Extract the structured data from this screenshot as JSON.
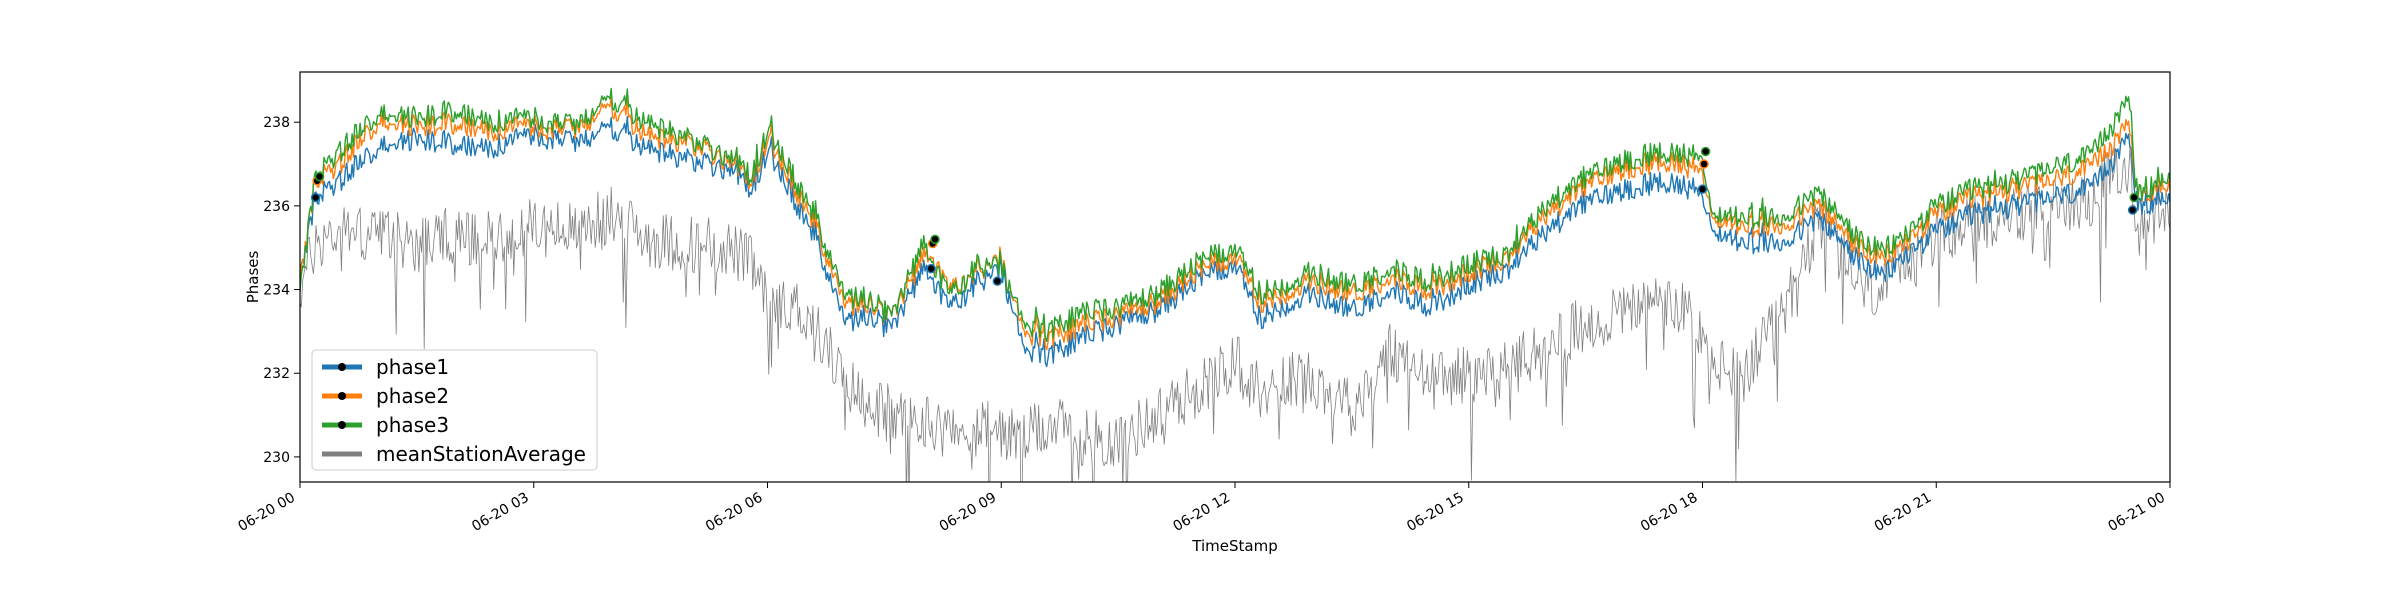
{
  "colors": {
    "phase1": "#1f77b4",
    "phase2": "#ff7f0e",
    "phase3": "#2ca02c",
    "meanStationAverage": "#808080",
    "marker": "#000000"
  },
  "chart_data": {
    "type": "line",
    "title": "",
    "xlabel": "TimeStamp",
    "ylabel": "Phases",
    "xlim": [
      "2024-06-20 00:00",
      "2024-06-21 00:00"
    ],
    "ylim": [
      229.4,
      239.2
    ],
    "grid": false,
    "legend_position": "lower-left",
    "x_ticks": [
      "06-20 00",
      "06-20 03",
      "06-20 06",
      "06-20 09",
      "06-20 12",
      "06-20 15",
      "06-20 18",
      "06-20 21",
      "06-21 00"
    ],
    "y_ticks": [
      "230",
      "232",
      "234",
      "236",
      "238"
    ],
    "x_hours": [
      0,
      0.2,
      0.5,
      1,
      1.5,
      2,
      2.5,
      3,
      3.5,
      4,
      4.5,
      5,
      5.5,
      5.8,
      6,
      6.3,
      6.6,
      7,
      7.3,
      7.6,
      8,
      8.1,
      8.4,
      8.7,
      9,
      9.3,
      9.6,
      10,
      10.5,
      11,
      11.5,
      12,
      12.3,
      12.6,
      13,
      13.5,
      14,
      14.5,
      15,
      15.5,
      16,
      16.5,
      17,
      17.5,
      17.9,
      18,
      18.1,
      18.5,
      19,
      19.5,
      20,
      20.3,
      20.6,
      21,
      21.5,
      22,
      22.5,
      23,
      23.5,
      23.55,
      24
    ],
    "series": [
      {
        "name": "phase1",
        "values": [
          234.3,
          236.2,
          236.6,
          237.4,
          237.6,
          237.5,
          237.4,
          237.7,
          237.5,
          237.9,
          237.3,
          237.1,
          236.9,
          236.4,
          237.3,
          236.3,
          235.3,
          233.2,
          233.4,
          233.0,
          234.5,
          234.1,
          233.6,
          234.2,
          234.4,
          232.6,
          232.4,
          232.8,
          233.2,
          233.5,
          234.2,
          234.6,
          233.3,
          233.6,
          233.9,
          233.5,
          234.0,
          233.6,
          234.1,
          234.5,
          235.4,
          236.1,
          236.4,
          236.6,
          236.4,
          236.4,
          235.5,
          235.1,
          235.1,
          235.7,
          234.7,
          234.3,
          234.8,
          235.4,
          235.8,
          236.0,
          236.2,
          236.4,
          237.7,
          235.9,
          236.3
        ]
      },
      {
        "name": "phase2",
        "values": [
          234.2,
          236.6,
          237.0,
          238.0,
          237.9,
          238.0,
          237.8,
          237.9,
          237.8,
          238.4,
          237.6,
          237.5,
          237.1,
          236.6,
          237.6,
          236.6,
          235.6,
          233.6,
          233.7,
          233.3,
          234.8,
          234.6,
          234.0,
          234.5,
          234.6,
          233.0,
          232.8,
          233.1,
          233.4,
          233.7,
          234.4,
          234.8,
          233.7,
          233.9,
          234.2,
          233.9,
          234.3,
          234.0,
          234.4,
          234.8,
          235.8,
          236.5,
          236.9,
          237.1,
          236.9,
          237.0,
          235.8,
          235.5,
          235.5,
          236.0,
          235.0,
          234.7,
          235.1,
          235.8,
          236.2,
          236.4,
          236.6,
          236.9,
          238.0,
          236.2,
          236.6
        ]
      },
      {
        "name": "phase3",
        "values": [
          234.0,
          236.7,
          237.3,
          238.2,
          238.1,
          238.3,
          238.0,
          238.1,
          237.9,
          238.6,
          237.9,
          237.6,
          237.2,
          236.7,
          237.8,
          236.8,
          235.8,
          233.8,
          233.8,
          233.3,
          235.1,
          234.5,
          233.9,
          234.6,
          234.5,
          233.2,
          233.0,
          233.4,
          233.6,
          233.9,
          234.6,
          235.0,
          233.9,
          234.1,
          234.4,
          234.1,
          234.5,
          234.2,
          234.6,
          234.9,
          236.0,
          236.7,
          237.1,
          237.3,
          237.2,
          237.3,
          235.9,
          235.7,
          235.7,
          236.3,
          235.2,
          234.9,
          235.3,
          236.0,
          236.4,
          236.6,
          236.9,
          237.2,
          238.6,
          236.2,
          236.8
        ]
      },
      {
        "name": "meanStationAverage",
        "values": [
          234.0,
          235.1,
          235.4,
          235.3,
          235.1,
          235.3,
          235.2,
          235.5,
          235.4,
          235.8,
          235.2,
          235.1,
          235.0,
          234.6,
          233.6,
          233.7,
          233.2,
          231.8,
          231.3,
          231.0,
          230.8,
          230.9,
          230.5,
          230.7,
          230.6,
          230.4,
          230.8,
          230.5,
          230.4,
          231.0,
          231.6,
          232.3,
          231.6,
          231.8,
          231.9,
          231.2,
          232.6,
          231.8,
          232.0,
          232.1,
          232.6,
          233.2,
          233.5,
          233.7,
          233.3,
          232.8,
          232.3,
          231.9,
          233.3,
          235.7,
          234.1,
          233.9,
          234.6,
          235.3,
          235.6,
          235.8,
          236.0,
          236.2,
          237.2,
          235.4,
          235.8
        ]
      }
    ],
    "markers": [
      {
        "series": "phase1",
        "x_hour": 0.2,
        "y": 236.2
      },
      {
        "series": "phase2",
        "x_hour": 0.22,
        "y": 236.6
      },
      {
        "series": "phase3",
        "x_hour": 0.25,
        "y": 236.7
      },
      {
        "series": "phase1",
        "x_hour": 8.1,
        "y": 234.5
      },
      {
        "series": "phase2",
        "x_hour": 8.12,
        "y": 235.1
      },
      {
        "series": "phase3",
        "x_hour": 8.15,
        "y": 235.2
      },
      {
        "series": "phase1",
        "x_hour": 8.95,
        "y": 234.2
      },
      {
        "series": "phase1",
        "x_hour": 18.0,
        "y": 236.4
      },
      {
        "series": "phase2",
        "x_hour": 18.02,
        "y": 237.0
      },
      {
        "series": "phase3",
        "x_hour": 18.04,
        "y": 237.3
      },
      {
        "series": "phase1",
        "x_hour": 23.52,
        "y": 235.9
      },
      {
        "series": "phase3",
        "x_hour": 23.54,
        "y": 236.2
      }
    ]
  }
}
